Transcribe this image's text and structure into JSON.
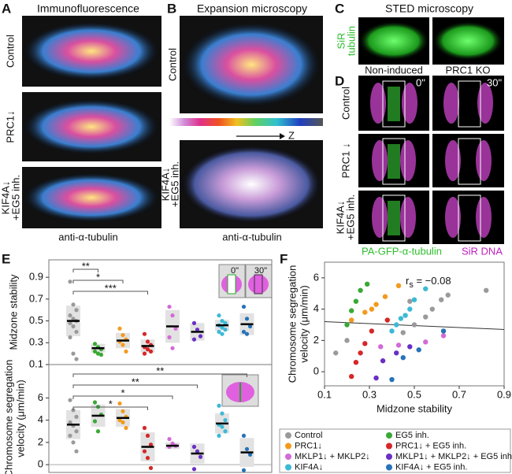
{
  "panels": {
    "a": {
      "letter": "A",
      "title": "Immunofluorescence",
      "labels": [
        "Control",
        "PRC1↓",
        "KIF4A↓",
        "+EG5 inh."
      ],
      "footer": "anti-α-tubulin"
    },
    "b": {
      "letter": "B",
      "title": "Expansion microscopy",
      "labels": [
        "Control",
        "KIF4A↓",
        "+EG5 inh."
      ],
      "axis": "Z",
      "footer": "anti-α-tubulin"
    },
    "c": {
      "letter": "C",
      "title": "STED microscopy",
      "labels": [
        "SiR",
        "tubulin"
      ],
      "columns": [
        "Non-induced",
        "PRC1 KO"
      ]
    },
    "d": {
      "letter": "D",
      "times": [
        "0\"",
        "30\""
      ],
      "labels": [
        "Control",
        "PRC1 ↓",
        "KIF4A↓",
        "+EG5 inh."
      ],
      "footer": [
        "PA-GFP-α-tubulin",
        "SiR DNA"
      ]
    },
    "e": {
      "letter": "E",
      "inset": [
        "0\"",
        "30\""
      ]
    },
    "f": {
      "letter": "F",
      "stat": {
        "symbol": "r",
        "sub": "s",
        "text": " = −0.08"
      }
    }
  },
  "legend": {
    "items": [
      {
        "name": "Control",
        "color": "#9a9a9a"
      },
      {
        "name": "EG5 inh.",
        "color": "#39a935"
      },
      {
        "name": "PRC1↓",
        "color": "#f39a1e"
      },
      {
        "name": "PRC1↓ + EG5 inh.",
        "color": "#d62728"
      },
      {
        "name": "MKLP1↓ + MKLP2↓",
        "color": "#d36ad6"
      },
      {
        "name": "MKLP1↓ + MKLP2↓ + EG5 inh.",
        "color": "#6a2fc4"
      },
      {
        "name": "KIF4A↓",
        "color": "#3cb9d6"
      },
      {
        "name": "KIF4A↓ + EG5 inh.",
        "color": "#2673b8"
      }
    ]
  },
  "chart_data": [
    {
      "type": "strip",
      "y_label": "Midzone stability",
      "ylim": [
        0.1,
        1.06
      ],
      "yticks": [
        0.1,
        0.3,
        0.5,
        0.7,
        0.9
      ],
      "brackets": [
        {
          "label": "**",
          "to": 1
        },
        {
          "label": "*",
          "to": 2
        },
        {
          "label": "***",
          "to": 3
        }
      ],
      "series": [
        {
          "values": [
            0.86,
            0.65,
            0.6,
            0.55,
            0.52,
            0.5,
            0.48,
            0.45,
            0.4,
            0.35,
            0.2,
            0.15
          ],
          "mean": 0.5,
          "sd": 0.14
        },
        {
          "values": [
            0.29,
            0.26,
            0.24,
            0.22,
            0.2,
            0.19
          ],
          "mean": 0.25,
          "sd": 0.04
        },
        {
          "values": [
            0.43,
            0.37,
            0.33,
            0.31,
            0.28,
            0.22
          ],
          "mean": 0.32,
          "sd": 0.07
        },
        {
          "values": [
            0.38,
            0.31,
            0.28,
            0.26,
            0.24,
            0.22,
            0.2
          ],
          "mean": 0.27,
          "sd": 0.06
        },
        {
          "values": [
            0.63,
            0.55,
            0.43,
            0.35,
            0.25
          ],
          "mean": 0.45,
          "sd": 0.15
        },
        {
          "values": [
            0.48,
            0.42,
            0.36,
            0.33
          ],
          "mean": 0.4,
          "sd": 0.08
        },
        {
          "values": [
            0.55,
            0.5,
            0.48,
            0.46,
            0.44,
            0.42,
            0.4,
            0.38
          ],
          "mean": 0.46,
          "sd": 0.05
        },
        {
          "values": [
            0.63,
            0.52,
            0.45,
            0.4,
            0.38
          ],
          "mean": 0.47,
          "sd": 0.1
        }
      ]
    },
    {
      "type": "strip",
      "y_label": [
        "Chromosome segregation",
        "velocity (μm/min)"
      ],
      "ylim": [
        -0.7,
        9
      ],
      "yticks": [
        0,
        2,
        4,
        6
      ],
      "brackets": [
        {
          "label": "**",
          "to": 7
        },
        {
          "label": "**",
          "to": 5
        },
        {
          "label": "*",
          "to": 4
        },
        {
          "label": "*",
          "to": 3
        }
      ],
      "series": [
        {
          "values": [
            5.8,
            4.9,
            4.3,
            3.8,
            3.5,
            3.0,
            2.6,
            2.0,
            1.2
          ],
          "mean": 3.6,
          "sd": 1.3
        },
        {
          "values": [
            5.6,
            5.2,
            4.5,
            3.9,
            3.0
          ],
          "mean": 4.4,
          "sd": 1.0
        },
        {
          "values": [
            5.5,
            4.8,
            4.3,
            4.0,
            3.8,
            3.3
          ],
          "mean": 4.2,
          "sd": 0.8
        },
        {
          "values": [
            3.3,
            2.6,
            1.8,
            1.2,
            0.6,
            -0.3
          ],
          "mean": 1.6,
          "sd": 1.3
        },
        {
          "values": [
            2.3,
            1.9,
            1.7,
            1.6
          ],
          "mean": 1.7,
          "sd": 0.3
        },
        {
          "values": [
            1.6,
            1.2,
            0.7,
            -0.4
          ],
          "mean": 1.0,
          "sd": 0.9
        },
        {
          "values": [
            5.3,
            4.6,
            4.0,
            3.6,
            3.4,
            3.0,
            2.6
          ],
          "mean": 3.7,
          "sd": 0.9
        },
        {
          "values": [
            2.6,
            1.4,
            0.9,
            -0.5
          ],
          "mean": 1.1,
          "sd": 1.3
        }
      ]
    },
    {
      "type": "scatter",
      "x_label": "Midzone stability",
      "y_label": [
        "Chromosome segregation",
        "velocity (μm/min)"
      ],
      "xlim": [
        0.1,
        0.9
      ],
      "ylim": [
        -0.9,
        7
      ],
      "xticks": [
        0.1,
        0.3,
        0.5,
        0.7,
        0.9
      ],
      "yticks": [
        0,
        2,
        4,
        6
      ],
      "fit_line": {
        "x": [
          0.1,
          0.9
        ],
        "y": [
          3.2,
          2.7
        ]
      },
      "series": [
        {
          "x": [
            0.82,
            0.65,
            0.62,
            0.58,
            0.55,
            0.5,
            0.48,
            0.45,
            0.2,
            0.15
          ],
          "y": [
            5.2,
            4.9,
            4.6,
            4.0,
            3.5,
            3.0,
            4.5,
            2.5,
            2.0,
            1.2
          ]
        },
        {
          "x": [
            0.29,
            0.26,
            0.24,
            0.22,
            0.2
          ],
          "y": [
            5.6,
            5.2,
            4.5,
            3.9,
            3.0
          ]
        },
        {
          "x": [
            0.43,
            0.37,
            0.33,
            0.31,
            0.28,
            0.22
          ],
          "y": [
            5.5,
            4.8,
            4.3,
            4.0,
            3.8,
            3.3
          ]
        },
        {
          "x": [
            0.38,
            0.31,
            0.28,
            0.26,
            0.24,
            0.22
          ],
          "y": [
            3.3,
            2.6,
            1.8,
            1.2,
            0.6,
            -0.3
          ]
        },
        {
          "x": [
            0.63,
            0.55,
            0.43,
            0.35
          ],
          "y": [
            2.3,
            1.9,
            1.7,
            1.6
          ]
        },
        {
          "x": [
            0.48,
            0.42,
            0.36,
            0.33
          ],
          "y": [
            1.6,
            1.2,
            0.7,
            -0.4
          ]
        },
        {
          "x": [
            0.55,
            0.5,
            0.48,
            0.46,
            0.44,
            0.42,
            0.4
          ],
          "y": [
            5.3,
            4.6,
            4.0,
            3.6,
            3.4,
            3.0,
            2.6
          ]
        },
        {
          "x": [
            0.63,
            0.52,
            0.45,
            0.4
          ],
          "y": [
            2.6,
            1.4,
            0.9,
            -0.5
          ]
        }
      ]
    }
  ]
}
